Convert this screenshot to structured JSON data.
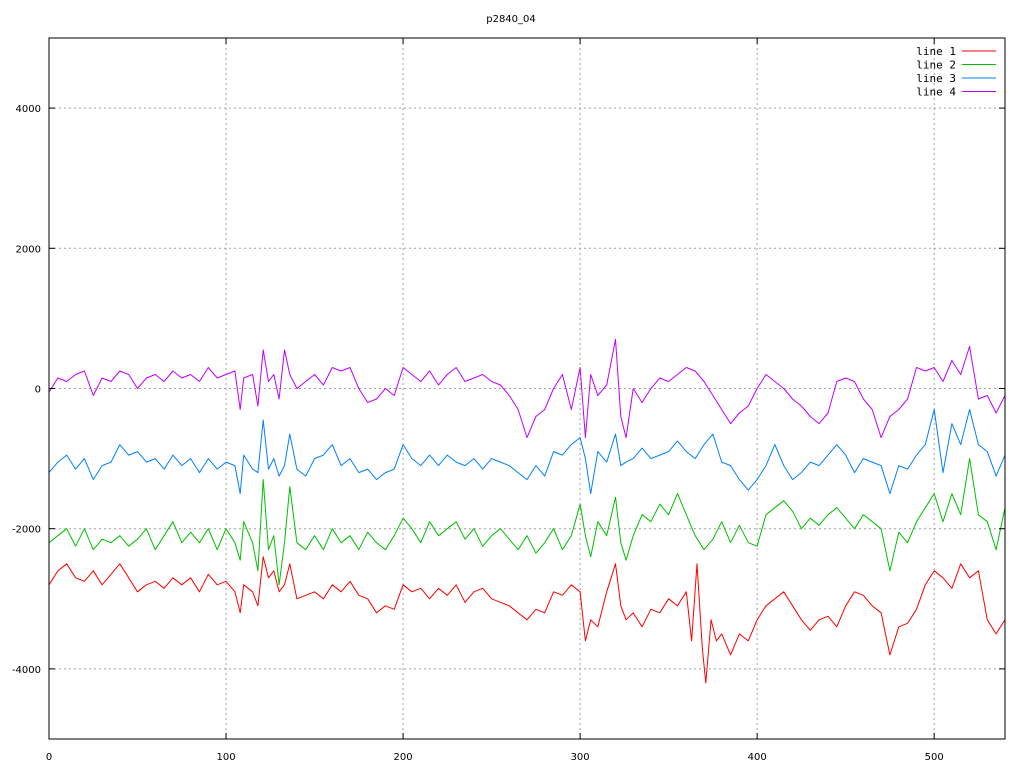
{
  "chart_data": {
    "type": "line",
    "title": "p2840_04",
    "xlabel": "",
    "ylabel": "",
    "xlim": [
      0,
      540
    ],
    "ylim": [
      -5000,
      5000
    ],
    "xticks": [
      0,
      100,
      200,
      300,
      400,
      500
    ],
    "yticks": [
      -4000,
      -2000,
      0,
      2000,
      4000
    ],
    "grid": true,
    "legend_position": "top-right",
    "series": [
      {
        "name": "line 1",
        "color": "#ff0000",
        "x": [
          0,
          5,
          10,
          15,
          20,
          25,
          30,
          35,
          40,
          45,
          50,
          55,
          60,
          65,
          70,
          75,
          80,
          85,
          90,
          95,
          100,
          105,
          108,
          110,
          115,
          118,
          121,
          124,
          127,
          130,
          133,
          136,
          140,
          145,
          150,
          155,
          160,
          165,
          170,
          175,
          180,
          185,
          190,
          195,
          200,
          205,
          210,
          215,
          220,
          225,
          230,
          235,
          240,
          245,
          250,
          255,
          260,
          265,
          270,
          275,
          280,
          285,
          290,
          295,
          300,
          303,
          306,
          310,
          315,
          320,
          323,
          326,
          330,
          335,
          340,
          345,
          350,
          355,
          360,
          363,
          366,
          369,
          371,
          374,
          377,
          380,
          385,
          390,
          395,
          400,
          405,
          410,
          415,
          420,
          425,
          430,
          435,
          440,
          445,
          450,
          455,
          460,
          465,
          470,
          475,
          480,
          485,
          490,
          495,
          500,
          505,
          510,
          515,
          520,
          525,
          530,
          535,
          540
        ],
        "y": [
          -2800,
          -2600,
          -2500,
          -2700,
          -2750,
          -2600,
          -2800,
          -2650,
          -2500,
          -2700,
          -2900,
          -2800,
          -2750,
          -2850,
          -2700,
          -2800,
          -2700,
          -2900,
          -2650,
          -2800,
          -2750,
          -2900,
          -3200,
          -2800,
          -2900,
          -3100,
          -2400,
          -2700,
          -2600,
          -2900,
          -2800,
          -2500,
          -3000,
          -2950,
          -2900,
          -3000,
          -2800,
          -2900,
          -2750,
          -2950,
          -3000,
          -3200,
          -3100,
          -3150,
          -2800,
          -2900,
          -2850,
          -3000,
          -2850,
          -2950,
          -2800,
          -3050,
          -2900,
          -2850,
          -3000,
          -3050,
          -3100,
          -3200,
          -3300,
          -3150,
          -3200,
          -2900,
          -2950,
          -2800,
          -2900,
          -3600,
          -3300,
          -3400,
          -2900,
          -2500,
          -3100,
          -3300,
          -3200,
          -3400,
          -3150,
          -3200,
          -3000,
          -3100,
          -2900,
          -3600,
          -2500,
          -3700,
          -4200,
          -3300,
          -3600,
          -3500,
          -3800,
          -3500,
          -3600,
          -3300,
          -3100,
          -3000,
          -2900,
          -3100,
          -3300,
          -3450,
          -3300,
          -3250,
          -3400,
          -3100,
          -2900,
          -2950,
          -3100,
          -3200,
          -3800,
          -3400,
          -3350,
          -3150,
          -2800,
          -2600,
          -2700,
          -2850,
          -2500,
          -2700,
          -2600,
          -3300,
          -3500,
          -3300
        ]
      },
      {
        "name": "line 2",
        "color": "#00c000",
        "x": [
          0,
          5,
          10,
          15,
          20,
          25,
          30,
          35,
          40,
          45,
          50,
          55,
          60,
          65,
          70,
          75,
          80,
          85,
          90,
          95,
          100,
          105,
          108,
          110,
          115,
          118,
          121,
          124,
          127,
          130,
          133,
          136,
          140,
          145,
          150,
          155,
          160,
          165,
          170,
          175,
          180,
          185,
          190,
          195,
          200,
          205,
          210,
          215,
          220,
          225,
          230,
          235,
          240,
          245,
          250,
          255,
          260,
          265,
          270,
          275,
          280,
          285,
          290,
          295,
          300,
          303,
          306,
          310,
          315,
          320,
          323,
          326,
          330,
          335,
          340,
          345,
          350,
          355,
          360,
          365,
          370,
          375,
          380,
          385,
          390,
          395,
          400,
          405,
          410,
          415,
          420,
          425,
          430,
          435,
          440,
          445,
          450,
          455,
          460,
          465,
          470,
          475,
          480,
          485,
          490,
          495,
          500,
          505,
          510,
          515,
          520,
          525,
          530,
          535,
          540
        ],
        "y": [
          -2200,
          -2100,
          -2000,
          -2250,
          -2000,
          -2300,
          -2150,
          -2200,
          -2100,
          -2250,
          -2150,
          -2000,
          -2300,
          -2100,
          -1900,
          -2200,
          -2050,
          -2200,
          -2000,
          -2300,
          -2000,
          -2200,
          -2450,
          -1900,
          -2200,
          -2600,
          -1300,
          -2300,
          -2100,
          -2800,
          -2200,
          -1400,
          -2200,
          -2300,
          -2100,
          -2300,
          -2000,
          -2200,
          -2100,
          -2300,
          -2050,
          -2200,
          -2300,
          -2100,
          -1850,
          -2000,
          -2200,
          -1900,
          -2100,
          -2000,
          -1900,
          -2150,
          -2000,
          -2250,
          -2100,
          -2000,
          -2150,
          -2300,
          -2100,
          -2350,
          -2200,
          -2000,
          -2300,
          -2100,
          -1650,
          -2100,
          -2400,
          -1900,
          -2100,
          -1550,
          -2200,
          -2450,
          -2100,
          -1800,
          -1900,
          -1650,
          -1800,
          -1500,
          -1800,
          -2100,
          -2300,
          -2150,
          -1900,
          -2200,
          -1950,
          -2200,
          -2250,
          -1800,
          -1700,
          -1600,
          -1750,
          -2000,
          -1850,
          -1950,
          -1800,
          -1700,
          -1850,
          -2000,
          -1800,
          -1900,
          -2000,
          -2600,
          -2050,
          -2200,
          -1900,
          -1700,
          -1500,
          -1900,
          -1500,
          -1800,
          -1000,
          -1800,
          -1900,
          -2300,
          -1700
        ]
      },
      {
        "name": "line 3",
        "color": "#0080ff",
        "x": [
          0,
          5,
          10,
          15,
          20,
          25,
          30,
          35,
          40,
          45,
          50,
          55,
          60,
          65,
          70,
          75,
          80,
          85,
          90,
          95,
          100,
          105,
          108,
          110,
          115,
          118,
          121,
          124,
          127,
          130,
          133,
          136,
          140,
          145,
          150,
          155,
          160,
          165,
          170,
          175,
          180,
          185,
          190,
          195,
          200,
          205,
          210,
          215,
          220,
          225,
          230,
          235,
          240,
          245,
          250,
          255,
          260,
          265,
          270,
          275,
          280,
          285,
          290,
          295,
          300,
          303,
          306,
          310,
          315,
          320,
          323,
          326,
          330,
          335,
          340,
          345,
          350,
          355,
          360,
          365,
          370,
          375,
          380,
          385,
          390,
          395,
          400,
          405,
          410,
          415,
          420,
          425,
          430,
          435,
          440,
          445,
          450,
          455,
          460,
          465,
          470,
          475,
          480,
          485,
          490,
          495,
          500,
          505,
          510,
          515,
          520,
          525,
          530,
          535,
          540
        ],
        "y": [
          -1200,
          -1050,
          -950,
          -1150,
          -1000,
          -1300,
          -1100,
          -1050,
          -800,
          -950,
          -900,
          -1050,
          -1000,
          -1150,
          -950,
          -1100,
          -1000,
          -1200,
          -1000,
          -1150,
          -1050,
          -1100,
          -1500,
          -950,
          -1150,
          -1200,
          -450,
          -1150,
          -1000,
          -1250,
          -1100,
          -650,
          -1150,
          -1250,
          -1000,
          -950,
          -800,
          -1100,
          -1000,
          -1200,
          -1150,
          -1300,
          -1200,
          -1150,
          -800,
          -1000,
          -1100,
          -950,
          -1100,
          -950,
          -1050,
          -1100,
          -1000,
          -1150,
          -1000,
          -1050,
          -1100,
          -1200,
          -1300,
          -1100,
          -1250,
          -900,
          -950,
          -800,
          -700,
          -1000,
          -1500,
          -900,
          -1050,
          -650,
          -1100,
          -1050,
          -1000,
          -850,
          -1000,
          -950,
          -900,
          -750,
          -900,
          -1000,
          -800,
          -650,
          -1050,
          -1100,
          -1300,
          -1450,
          -1300,
          -1100,
          -800,
          -1100,
          -1300,
          -1200,
          -1050,
          -1100,
          -950,
          -800,
          -950,
          -1200,
          -1000,
          -1050,
          -1100,
          -1500,
          -1100,
          -1150,
          -950,
          -800,
          -300,
          -1200,
          -500,
          -800,
          -300,
          -800,
          -900,
          -1250,
          -950
        ]
      },
      {
        "name": "line 4",
        "color": "#c000ff",
        "x": [
          0,
          5,
          10,
          15,
          20,
          25,
          30,
          35,
          40,
          45,
          50,
          55,
          60,
          65,
          70,
          75,
          80,
          85,
          90,
          95,
          100,
          105,
          108,
          110,
          115,
          118,
          121,
          124,
          127,
          130,
          133,
          136,
          140,
          145,
          150,
          155,
          160,
          165,
          170,
          175,
          180,
          185,
          190,
          195,
          200,
          205,
          210,
          215,
          220,
          225,
          230,
          235,
          240,
          245,
          250,
          255,
          260,
          265,
          270,
          275,
          280,
          285,
          290,
          295,
          300,
          303,
          306,
          310,
          315,
          320,
          323,
          326,
          330,
          335,
          340,
          345,
          350,
          355,
          360,
          365,
          370,
          375,
          380,
          385,
          390,
          395,
          400,
          405,
          410,
          415,
          420,
          425,
          430,
          435,
          440,
          445,
          450,
          455,
          460,
          465,
          470,
          475,
          480,
          485,
          490,
          495,
          500,
          505,
          510,
          515,
          520,
          525,
          530,
          535,
          540
        ],
        "y": [
          -50,
          150,
          100,
          200,
          250,
          -100,
          150,
          100,
          250,
          200,
          0,
          150,
          200,
          100,
          250,
          150,
          200,
          100,
          300,
          150,
          200,
          250,
          -300,
          150,
          200,
          -250,
          550,
          100,
          200,
          -150,
          550,
          200,
          0,
          100,
          200,
          50,
          300,
          250,
          300,
          0,
          -200,
          -150,
          0,
          -100,
          300,
          200,
          100,
          250,
          50,
          200,
          300,
          100,
          150,
          200,
          100,
          50,
          -100,
          -300,
          -700,
          -400,
          -300,
          0,
          200,
          -300,
          300,
          -700,
          200,
          -100,
          50,
          700,
          -400,
          -700,
          0,
          -200,
          0,
          150,
          100,
          200,
          300,
          250,
          100,
          -100,
          -300,
          -500,
          -350,
          -250,
          0,
          200,
          100,
          0,
          -150,
          -250,
          -400,
          -500,
          -350,
          100,
          150,
          100,
          -150,
          -300,
          -700,
          -400,
          -300,
          -150,
          300,
          250,
          300,
          100,
          400,
          200,
          600,
          -150,
          -100,
          -350,
          -100
        ]
      }
    ]
  }
}
